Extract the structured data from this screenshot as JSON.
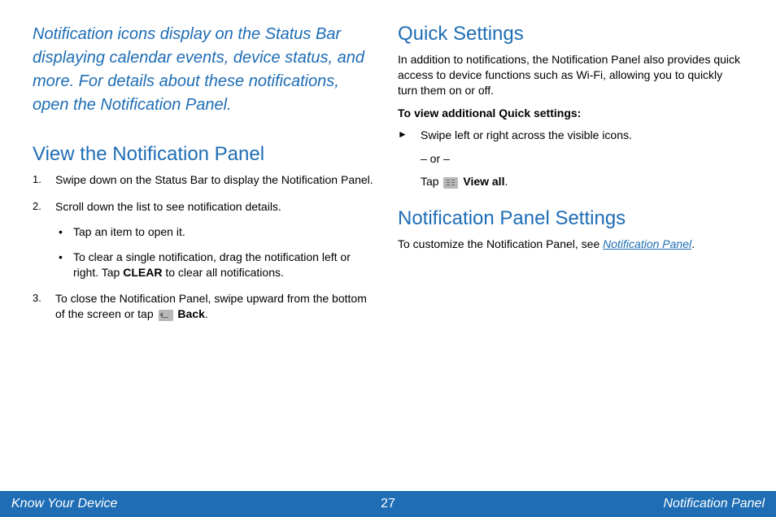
{
  "colors": {
    "accent": "#1e6db5",
    "text": "#000000",
    "footer_bg": "#1e6db5",
    "footer_text": "#ffffff",
    "icon_bg": "#b8b8b8"
  },
  "left": {
    "intro": "Notification icons display on the Status Bar displaying calendar events, device status, and more. For details about these notifications, open the Notification Panel.",
    "section1": {
      "heading": "View the Notification Panel",
      "steps": {
        "s1": "Swipe down on the Status Bar to display the Notification Panel.",
        "s2": "Scroll down the list to see notification details.",
        "s2_bullets": {
          "b1": "Tap an item to open it.",
          "b2_pre": "To clear a single notification, drag the notification left or right. Tap ",
          "b2_bold": "CLEAR",
          "b2_post": " to clear all notifications."
        },
        "s3_pre": "To close the Notification Panel, swipe upward from the bottom of the screen or tap ",
        "s3_bold": "Back",
        "s3_post": "."
      }
    }
  },
  "right": {
    "section1": {
      "heading": "Quick Settings",
      "body": "In addition to notifications, the Notification Panel also provides quick access to device functions such as Wi-Fi, allowing you to quickly turn them on or off.",
      "subheading": "To view additional Quick settings:",
      "arrow": "Swipe left or right across the visible icons.",
      "or": "– or –",
      "tap_pre": "Tap ",
      "tap_bold": "View all",
      "tap_post": "."
    },
    "section2": {
      "heading": "Notification Panel Settings",
      "body_pre": "To customize the Notification Panel, see ",
      "body_link": "Notification Panel",
      "body_post": "."
    }
  },
  "footer": {
    "left": "Know Your Device",
    "page": "27",
    "right": "Notification Panel"
  }
}
